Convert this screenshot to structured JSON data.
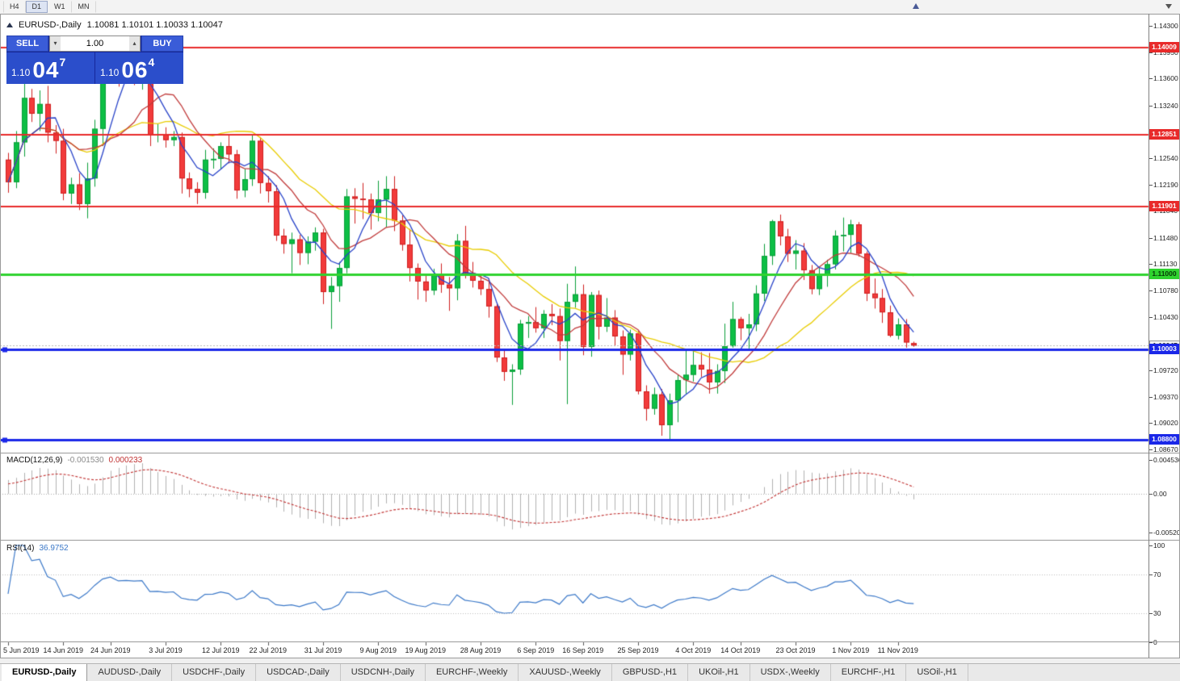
{
  "toolbar": {
    "timeframes": [
      {
        "label": "H4",
        "active": false
      },
      {
        "label": "D1",
        "active": true
      },
      {
        "label": "W1",
        "active": false
      },
      {
        "label": "MN",
        "active": false
      }
    ]
  },
  "chart_header": {
    "symbol_period": "EURUSD-,Daily",
    "ohlc": "1.10081 1.10101 1.10033 1.10047"
  },
  "trade_panel": {
    "sell_label": "SELL",
    "buy_label": "BUY",
    "volume": "1.00",
    "sell_price": {
      "small": "1.10",
      "big": "04",
      "sup": "7"
    },
    "buy_price": {
      "small": "1.10",
      "big": "06",
      "sup": "4"
    }
  },
  "price_axis": {
    "ticks": [
      {
        "text": "1.14300",
        "value": 1.143
      },
      {
        "text": "1.13950",
        "value": 1.1395
      },
      {
        "text": "1.13600",
        "value": 1.136
      },
      {
        "text": "1.13240",
        "value": 1.1324
      },
      {
        "text": "1.12890",
        "value": 1.1289
      },
      {
        "text": "1.12540",
        "value": 1.1254
      },
      {
        "text": "1.12190",
        "value": 1.1219
      },
      {
        "text": "1.11840",
        "value": 1.1184
      },
      {
        "text": "1.11480",
        "value": 1.1148
      },
      {
        "text": "1.11130",
        "value": 1.1113
      },
      {
        "text": "1.10780",
        "value": 1.1078
      },
      {
        "text": "1.10430",
        "value": 1.1043
      },
      {
        "text": "1.09720",
        "value": 1.0972
      },
      {
        "text": "1.09370",
        "value": 1.0937
      },
      {
        "text": "1.09020",
        "value": 1.0902
      },
      {
        "text": "1.08670",
        "value": 1.0867
      }
    ],
    "tags": [
      {
        "text": "1.14009",
        "value": 1.14009,
        "bg": "#e82a2a",
        "fg": "#ffffff"
      },
      {
        "text": "1.12851",
        "value": 1.12851,
        "bg": "#e82a2a",
        "fg": "#ffffff"
      },
      {
        "text": "1.11901",
        "value": 1.11901,
        "bg": "#e82a2a",
        "fg": "#ffffff"
      },
      {
        "text": "1.11000",
        "value": 1.11,
        "bg": "#2fd32f",
        "fg": "#053a05"
      },
      {
        "text": "1.10047",
        "value": 1.10047,
        "bg": "#f2f2f2",
        "fg": "#333333",
        "border": "#9a9a9a"
      },
      {
        "text": "1.10003",
        "value": 1.10003,
        "bg": "#1a27e8",
        "fg": "#ffffff"
      },
      {
        "text": "1.08800",
        "value": 1.088,
        "bg": "#1a27e8",
        "fg": "#ffffff"
      }
    ]
  },
  "indicators": {
    "macd": {
      "name": "MACD(12,26,9)",
      "value_main": "-0.001530",
      "value_signal": "0.000233",
      "axis": [
        {
          "text": "0.004536",
          "value": 0.004536
        },
        {
          "text": "0.00",
          "value": 0
        },
        {
          "text": "-0.005206",
          "value": -0.005206
        }
      ]
    },
    "rsi": {
      "name": "RSI(14)",
      "value": "36.9752",
      "axis": [
        {
          "text": "100",
          "value": 100
        },
        {
          "text": "70",
          "value": 70
        },
        {
          "text": "30",
          "value": 30
        },
        {
          "text": "0",
          "value": 0
        }
      ],
      "levels": [
        70,
        30
      ]
    }
  },
  "date_axis": {
    "labels": [
      {
        "text": "5 Jun 2019",
        "index": 0
      },
      {
        "text": "14 Jun 2019",
        "index": 7
      },
      {
        "text": "24 Jun 2019",
        "index": 13
      },
      {
        "text": "3 Jul 2019",
        "index": 20
      },
      {
        "text": "12 Jul 2019",
        "index": 27
      },
      {
        "text": "22 Jul 2019",
        "index": 33
      },
      {
        "text": "31 Jul 2019",
        "index": 40
      },
      {
        "text": "9 Aug 2019",
        "index": 47
      },
      {
        "text": "19 Aug 2019",
        "index": 53
      },
      {
        "text": "28 Aug 2019",
        "index": 60
      },
      {
        "text": "6 Sep 2019",
        "index": 67
      },
      {
        "text": "16 Sep 2019",
        "index": 73
      },
      {
        "text": "25 Sep 2019",
        "index": 80
      },
      {
        "text": "4 Oct 2019",
        "index": 87
      },
      {
        "text": "14 Oct 2019",
        "index": 93
      },
      {
        "text": "23 Oct 2019",
        "index": 100
      },
      {
        "text": "1 Nov 2019",
        "index": 107
      },
      {
        "text": "11 Nov 2019",
        "index": 113
      }
    ]
  },
  "tabs": {
    "items": [
      "EURUSD-,Daily",
      "AUDUSD-,Daily",
      "USDCHF-,Daily",
      "USDCAD-,Daily",
      "USDCNH-,Daily",
      "EURCHF-,Weekly",
      "XAUUSD-,Weekly",
      "GBPUSD-,H1",
      "UKOil-,H1",
      "USDX-,Weekly",
      "EURCHF-,H1",
      "USOil-,H1"
    ],
    "active_index": 0
  },
  "chart_data": {
    "type": "candlestick",
    "symbol": "EURUSD-",
    "timeframe": "Daily",
    "title": "EURUSD-,Daily",
    "ohlc_current": {
      "open": 1.10081,
      "high": 1.10101,
      "low": 1.10033,
      "close": 1.10047
    },
    "bid": 1.10047,
    "ask": 1.10064,
    "y_range": [
      1.08636,
      1.144487
    ],
    "hlines": [
      {
        "price": 1.14009,
        "color": "#e82a2a",
        "width": 2
      },
      {
        "price": 1.12851,
        "color": "#e82a2a",
        "width": 2
      },
      {
        "price": 1.11901,
        "color": "#e82a2a",
        "width": 2
      },
      {
        "price": 1.11,
        "color": "#2fd32f",
        "width": 3
      },
      {
        "price": 1.10003,
        "color": "#1a27e8",
        "width": 3,
        "handles": true
      },
      {
        "price": 1.088,
        "color": "#1a27e8",
        "width": 3,
        "handles": true
      }
    ],
    "colors": {
      "up": "#0dbf45",
      "up_border": "#0a9e39",
      "down": "#f23b3b",
      "down_border": "#cf1f1f",
      "ma_fast": "#2742c8",
      "ma_mid": "#c03a3a",
      "ma_slow": "#e8cc00",
      "macd_hist": "#b0b0b0",
      "macd_signal": "#c03030",
      "rsi": "#3b78c8"
    },
    "candles": [
      [
        1.1252,
        1.1261,
        1.1208,
        1.1222
      ],
      [
        1.1222,
        1.129,
        1.1214,
        1.1275
      ],
      [
        1.1275,
        1.1355,
        1.1256,
        1.1334
      ],
      [
        1.1334,
        1.1346,
        1.1302,
        1.1313
      ],
      [
        1.1313,
        1.1344,
        1.129,
        1.1326
      ],
      [
        1.1326,
        1.135,
        1.1275,
        1.1288
      ],
      [
        1.1288,
        1.1298,
        1.126,
        1.1277
      ],
      [
        1.1277,
        1.1293,
        1.1198,
        1.1207
      ],
      [
        1.1207,
        1.1228,
        1.1193,
        1.1219
      ],
      [
        1.1219,
        1.1234,
        1.1185,
        1.1193
      ],
      [
        1.1193,
        1.1248,
        1.1174,
        1.1227
      ],
      [
        1.1227,
        1.1305,
        1.1216,
        1.1293
      ],
      [
        1.1293,
        1.1387,
        1.127,
        1.1369
      ],
      [
        1.1369,
        1.1412,
        1.1356,
        1.1399
      ],
      [
        1.1399,
        1.1408,
        1.1349,
        1.1367
      ],
      [
        1.1367,
        1.1382,
        1.1353,
        1.1373
      ],
      [
        1.1373,
        1.1391,
        1.1351,
        1.1369
      ],
      [
        1.1369,
        1.1384,
        1.1345,
        1.1373
      ],
      [
        1.1373,
        1.1381,
        1.127,
        1.1285
      ],
      [
        1.1285,
        1.13,
        1.1275,
        1.1286
      ],
      [
        1.1286,
        1.1295,
        1.1268,
        1.1278
      ],
      [
        1.1278,
        1.129,
        1.127,
        1.1282
      ],
      [
        1.1282,
        1.1288,
        1.1207,
        1.1227
      ],
      [
        1.1227,
        1.1235,
        1.1202,
        1.1213
      ],
      [
        1.1213,
        1.1222,
        1.1193,
        1.1208
      ],
      [
        1.1208,
        1.1265,
        1.12,
        1.1252
      ],
      [
        1.1252,
        1.1267,
        1.124,
        1.1253
      ],
      [
        1.1253,
        1.1275,
        1.1239,
        1.127
      ],
      [
        1.127,
        1.1285,
        1.1247,
        1.1259
      ],
      [
        1.1259,
        1.1265,
        1.12,
        1.1211
      ],
      [
        1.1211,
        1.124,
        1.1202,
        1.1226
      ],
      [
        1.1226,
        1.1285,
        1.1217,
        1.1277
      ],
      [
        1.1277,
        1.1282,
        1.1207,
        1.1221
      ],
      [
        1.1221,
        1.123,
        1.1195,
        1.121
      ],
      [
        1.121,
        1.1218,
        1.1144,
        1.1151
      ],
      [
        1.1151,
        1.116,
        1.1127,
        1.114
      ],
      [
        1.114,
        1.1155,
        1.1101,
        1.1146
      ],
      [
        1.1146,
        1.1152,
        1.1112,
        1.1128
      ],
      [
        1.1128,
        1.115,
        1.1113,
        1.1143
      ],
      [
        1.1143,
        1.1162,
        1.1131,
        1.1155
      ],
      [
        1.1155,
        1.116,
        1.106,
        1.1076
      ],
      [
        1.1076,
        1.1096,
        1.1027,
        1.1084
      ],
      [
        1.1084,
        1.1116,
        1.1063,
        1.1108
      ],
      [
        1.1108,
        1.1213,
        1.1101,
        1.1203
      ],
      [
        1.1203,
        1.1214,
        1.1167,
        1.12
      ],
      [
        1.12,
        1.1221,
        1.1173,
        1.1199
      ],
      [
        1.1199,
        1.1207,
        1.1159,
        1.1181
      ],
      [
        1.1181,
        1.1224,
        1.117,
        1.1199
      ],
      [
        1.1199,
        1.123,
        1.1162,
        1.1213
      ],
      [
        1.1213,
        1.123,
        1.1157,
        1.1171
      ],
      [
        1.1171,
        1.1178,
        1.1131,
        1.1139
      ],
      [
        1.1139,
        1.116,
        1.109,
        1.1108
      ],
      [
        1.1108,
        1.1114,
        1.1066,
        1.109
      ],
      [
        1.109,
        1.1099,
        1.1063,
        1.1078
      ],
      [
        1.1078,
        1.1107,
        1.1072,
        1.11
      ],
      [
        1.11,
        1.1114,
        1.1075,
        1.1086
      ],
      [
        1.1086,
        1.1096,
        1.1051,
        1.1081
      ],
      [
        1.1081,
        1.1153,
        1.1065,
        1.1144
      ],
      [
        1.1144,
        1.1164,
        1.1094,
        1.1101
      ],
      [
        1.1101,
        1.1116,
        1.1082,
        1.1091
      ],
      [
        1.1091,
        1.1098,
        1.1072,
        1.108
      ],
      [
        1.108,
        1.1094,
        1.1042,
        1.1057
      ],
      [
        1.1057,
        1.106,
        1.0983,
        1.0989
      ],
      [
        1.0989,
        1.0998,
        1.0958,
        1.097
      ],
      [
        1.097,
        1.098,
        1.0926,
        1.0973
      ],
      [
        1.0973,
        1.1039,
        1.0966,
        1.1034
      ],
      [
        1.1034,
        1.1044,
        1.1015,
        1.1036
      ],
      [
        1.1036,
        1.1056,
        1.1022,
        1.1028
      ],
      [
        1.1028,
        1.1052,
        1.1015,
        1.1047
      ],
      [
        1.1047,
        1.106,
        1.1032,
        1.1044
      ],
      [
        1.1044,
        1.1054,
        1.0985,
        1.1011
      ],
      [
        1.1011,
        1.1087,
        1.0927,
        1.1063
      ],
      [
        1.1063,
        1.111,
        1.1055,
        1.1073
      ],
      [
        1.1073,
        1.1086,
        1.0992,
        1.1003
      ],
      [
        1.1003,
        1.1076,
        1.099,
        1.1072
      ],
      [
        1.1072,
        1.1078,
        1.1013,
        1.103
      ],
      [
        1.103,
        1.1068,
        1.1023,
        1.1042
      ],
      [
        1.1042,
        1.1052,
        1.1004,
        1.1017
      ],
      [
        1.1017,
        1.1025,
        1.0966,
        1.0993
      ],
      [
        1.0993,
        1.1026,
        1.0985,
        1.1021
      ],
      [
        1.1021,
        1.1024,
        1.094,
        1.0944
      ],
      [
        1.0944,
        1.0952,
        1.0905,
        1.0921
      ],
      [
        1.0921,
        1.0949,
        1.0913,
        1.094
      ],
      [
        1.094,
        1.0947,
        1.0885,
        1.0899
      ],
      [
        1.0899,
        1.0941,
        1.0879,
        1.0932
      ],
      [
        1.0932,
        1.0966,
        1.0903,
        1.0959
      ],
      [
        1.0959,
        1.0999,
        1.0941,
        1.0966
      ],
      [
        1.0966,
        1.0999,
        1.0957,
        1.0979
      ],
      [
        1.0979,
        1.0996,
        1.0963,
        1.0973
      ],
      [
        1.0973,
        1.0995,
        1.0941,
        1.0956
      ],
      [
        1.0956,
        1.098,
        1.0941,
        1.0971
      ],
      [
        1.0971,
        1.1034,
        1.0955,
        1.1004
      ],
      [
        1.1004,
        1.1063,
        1.1002,
        1.104
      ],
      [
        1.104,
        1.1043,
        1.1012,
        1.1028
      ],
      [
        1.1028,
        1.1047,
        1.1001,
        1.1033
      ],
      [
        1.1033,
        1.1085,
        1.1024,
        1.1074
      ],
      [
        1.1074,
        1.114,
        1.1064,
        1.1124
      ],
      [
        1.1124,
        1.1172,
        1.1112,
        1.117
      ],
      [
        1.117,
        1.1179,
        1.1138,
        1.115
      ],
      [
        1.115,
        1.116,
        1.1116,
        1.1127
      ],
      [
        1.1127,
        1.1145,
        1.1106,
        1.1131
      ],
      [
        1.1131,
        1.1141,
        1.1092,
        1.1105
      ],
      [
        1.1105,
        1.1112,
        1.1073,
        1.108
      ],
      [
        1.108,
        1.1108,
        1.1072,
        1.1099
      ],
      [
        1.1099,
        1.1119,
        1.1083,
        1.1113
      ],
      [
        1.1113,
        1.1158,
        1.1106,
        1.1151
      ],
      [
        1.1151,
        1.1175,
        1.113,
        1.1152
      ],
      [
        1.1152,
        1.1172,
        1.1128,
        1.1166
      ],
      [
        1.1166,
        1.1169,
        1.1123,
        1.1127
      ],
      [
        1.1127,
        1.113,
        1.1064,
        1.1074
      ],
      [
        1.1074,
        1.1094,
        1.1054,
        1.1068
      ],
      [
        1.1068,
        1.108,
        1.1035,
        1.1049
      ],
      [
        1.1049,
        1.1058,
        1.1016,
        1.1018
      ],
      [
        1.1018,
        1.1041,
        1.1013,
        1.1033
      ],
      [
        1.1033,
        1.104,
        1.1002,
        1.1009
      ],
      [
        1.10081,
        1.10101,
        1.10033,
        1.10047
      ]
    ]
  }
}
